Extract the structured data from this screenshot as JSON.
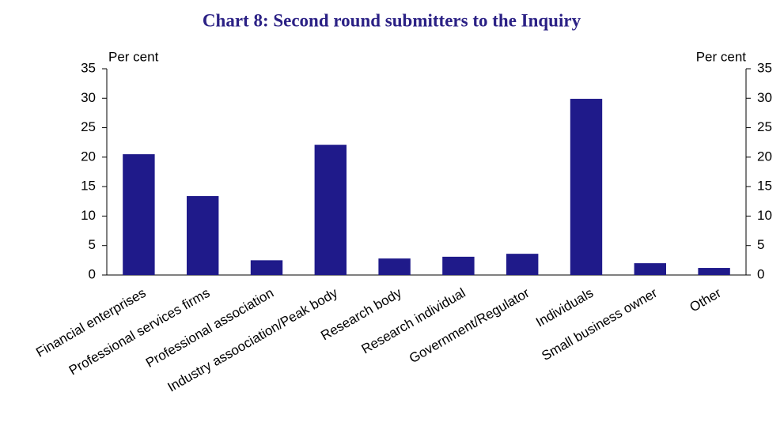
{
  "chart_data": {
    "type": "bar",
    "title": "Chart 8: Second round submitters to the Inquiry",
    "y_label": "Per cent",
    "y2_label": "Per cent",
    "categories": [
      "Financial enterprises",
      "Professional services firms",
      "Professional association",
      "Industry assoociation/Peak body",
      "Research body",
      "Research individual",
      "Government/Regulator",
      "Individuals",
      "Small business owner",
      "Other"
    ],
    "values": [
      20.5,
      13.4,
      2.5,
      22.1,
      2.8,
      3.1,
      3.6,
      29.9,
      2.0,
      1.2
    ],
    "color": "#1f1a8a",
    "ylim": [
      0,
      35
    ],
    "yticks": [
      0,
      5,
      10,
      15,
      20,
      25,
      30,
      35
    ],
    "y2lim": [
      0,
      35
    ],
    "y2ticks": [
      0,
      5,
      10,
      15,
      20,
      25,
      30,
      35
    ],
    "grid": false
  }
}
